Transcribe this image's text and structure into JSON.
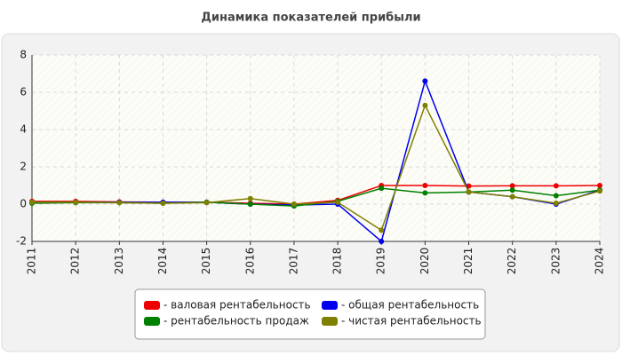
{
  "chart_data": {
    "type": "line",
    "title": "Динамика показателей прибыли",
    "categories": [
      "2011",
      "2012",
      "2013",
      "2014",
      "2015",
      "2016",
      "2017",
      "2018",
      "2019",
      "2020",
      "2021",
      "2022",
      "2023",
      "2024"
    ],
    "series": [
      {
        "name": "- валовая рентабельность",
        "color": "#ee0000",
        "values": [
          0.15,
          0.15,
          0.12,
          0.1,
          0.1,
          0.05,
          0.0,
          0.2,
          1.0,
          1.0,
          0.97,
          0.98,
          0.98,
          1.0
        ]
      },
      {
        "name": "- общая рентабельность",
        "color": "#0000ee",
        "values": [
          0.1,
          0.1,
          0.1,
          0.1,
          0.1,
          0.0,
          -0.05,
          0.0,
          -2.0,
          6.6,
          0.65,
          0.4,
          0.0,
          0.75
        ]
      },
      {
        "name": "- рентабельность продаж",
        "color": "#008000",
        "values": [
          0.05,
          0.08,
          0.08,
          0.05,
          0.1,
          0.0,
          -0.1,
          0.15,
          0.85,
          0.6,
          0.65,
          0.75,
          0.45,
          0.75
        ]
      },
      {
        "name": "- чистая рентабельность",
        "color": "#808000",
        "values": [
          0.1,
          0.1,
          0.08,
          0.05,
          0.08,
          0.3,
          0.0,
          0.1,
          -1.4,
          5.3,
          0.65,
          0.4,
          0.05,
          0.7
        ]
      }
    ],
    "ylim": [
      -2,
      8
    ],
    "yticks": [
      -2,
      0,
      2,
      4,
      6,
      8
    ],
    "grid": true
  }
}
